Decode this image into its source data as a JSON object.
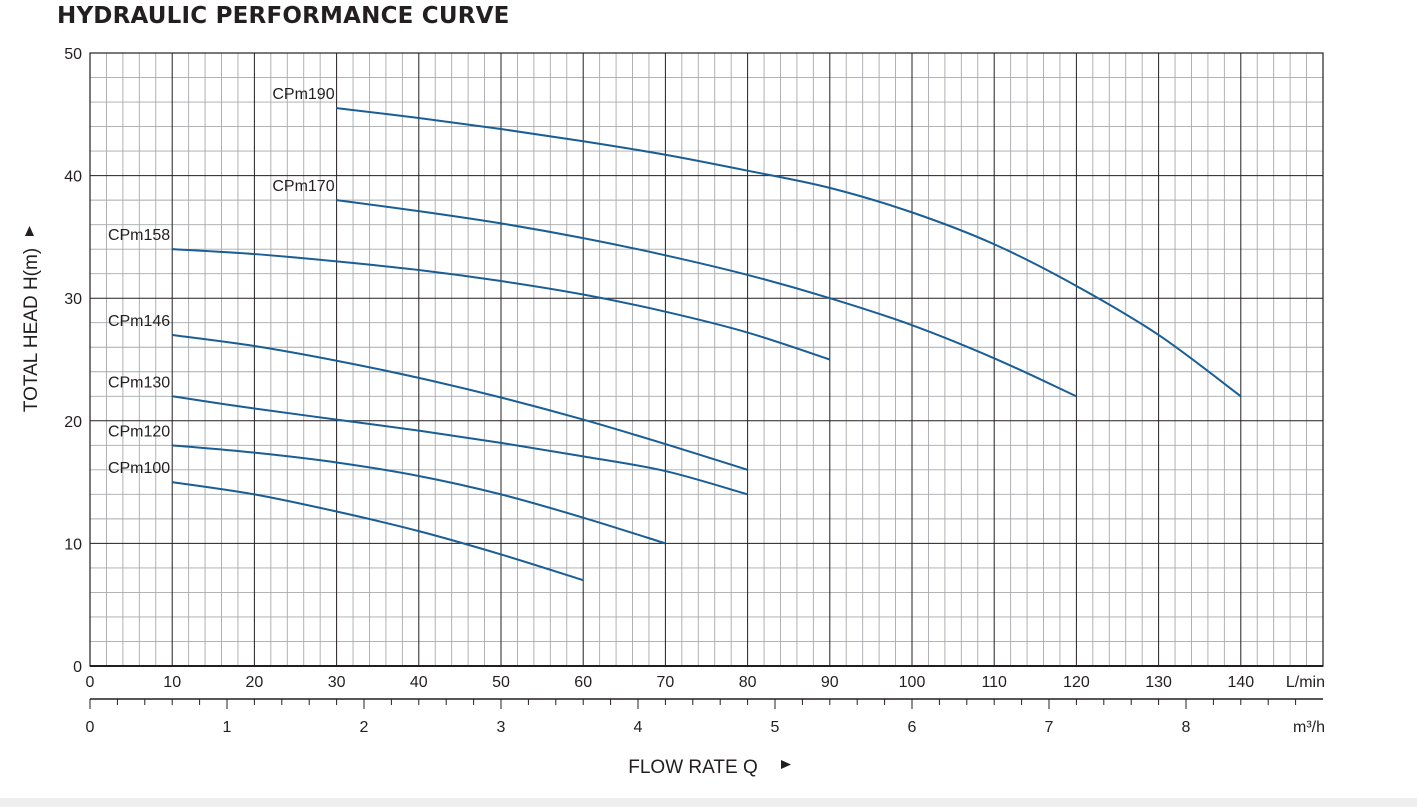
{
  "title": "HYDRAULIC PERFORMANCE CURVE",
  "chart_data": {
    "type": "line",
    "title": "HYDRAULIC PERFORMANCE CURVE",
    "xlabel": "FLOW RATE Q",
    "ylabel": "TOTAL HEAD H(m)",
    "x_unit": "L/min",
    "x2_unit": "m³/h",
    "xlim": [
      0,
      150
    ],
    "ylim": [
      0,
      50
    ],
    "x_ticks": [
      "0",
      "10",
      "20",
      "30",
      "40",
      "50",
      "60",
      "70",
      "80",
      "90",
      "100",
      "110",
      "120",
      "130",
      "140"
    ],
    "x2_ticks": [
      "0",
      "1",
      "2",
      "3",
      "4",
      "5",
      "6",
      "7",
      "8"
    ],
    "y_ticks": [
      "0",
      "10",
      "20",
      "30",
      "40",
      "50"
    ],
    "grid": true,
    "series": [
      {
        "name": "CPm190",
        "color": "#1a5e96",
        "x": [
          30,
          40,
          50,
          60,
          70,
          80,
          90,
          100,
          110,
          120,
          130,
          140
        ],
        "y": [
          45.5,
          44.7,
          43.8,
          42.8,
          41.7,
          40.4,
          39.0,
          37.0,
          34.4,
          31.0,
          27.0,
          22.0
        ]
      },
      {
        "name": "CPm170",
        "color": "#1a5e96",
        "x": [
          30,
          40,
          50,
          60,
          70,
          80,
          90,
          100,
          110,
          120
        ],
        "y": [
          38.0,
          37.1,
          36.1,
          34.9,
          33.5,
          31.9,
          30.0,
          27.8,
          25.1,
          22.0
        ]
      },
      {
        "name": "CPm158",
        "color": "#1a5e96",
        "x": [
          10,
          20,
          30,
          40,
          50,
          60,
          70,
          80,
          90
        ],
        "y": [
          34.0,
          33.6,
          33.0,
          32.3,
          31.4,
          30.3,
          28.9,
          27.2,
          25.0
        ]
      },
      {
        "name": "CPm146",
        "color": "#1a5e96",
        "x": [
          10,
          20,
          30,
          40,
          50,
          60,
          70,
          80
        ],
        "y": [
          27.0,
          26.1,
          24.9,
          23.5,
          21.9,
          20.1,
          18.1,
          16.0
        ]
      },
      {
        "name": "CPm130",
        "color": "#1a5e96",
        "x": [
          10,
          20,
          30,
          40,
          50,
          60,
          70,
          80
        ],
        "y": [
          22.0,
          21.0,
          20.1,
          19.2,
          18.2,
          17.1,
          15.9,
          14.0
        ]
      },
      {
        "name": "CPm120",
        "color": "#1a5e96",
        "x": [
          10,
          20,
          30,
          40,
          50,
          60,
          70
        ],
        "y": [
          18.0,
          17.4,
          16.6,
          15.5,
          14.0,
          12.1,
          10.0
        ]
      },
      {
        "name": "CPm100",
        "color": "#1a5e96",
        "x": [
          10,
          20,
          30,
          40,
          50,
          60
        ],
        "y": [
          15.0,
          14.0,
          12.6,
          11.0,
          9.1,
          7.0
        ]
      }
    ]
  }
}
